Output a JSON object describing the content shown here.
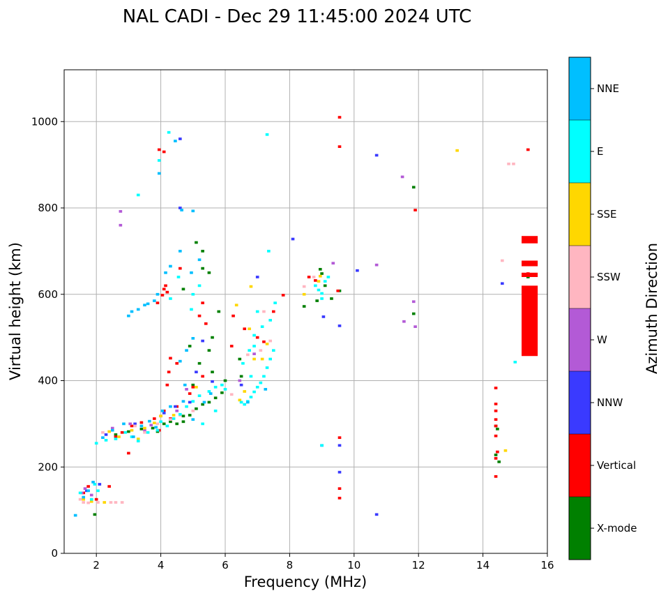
{
  "chart_data": {
    "type": "scatter",
    "title": "NAL CADI - Dec 29 11:45:00 2024 UTC",
    "xlabel": "Frequency (MHz)",
    "ylabel": "Virtual height (km)",
    "xlim": [
      1,
      16
    ],
    "ylim": [
      0,
      1120
    ],
    "xticks": [
      2,
      4,
      6,
      8,
      10,
      12,
      14,
      16
    ],
    "yticks": [
      0,
      200,
      400,
      600,
      800,
      1000
    ],
    "grid": true,
    "colorbar": {
      "title": "Azimuth Direction",
      "categories": [
        "X-mode",
        "Vertical",
        "NNW",
        "W",
        "SSW",
        "SSE",
        "E",
        "NNE"
      ],
      "colors": [
        "#008000",
        "#ff0000",
        "#3a3aff",
        "#b35ad6",
        "#ffb6c1",
        "#ffd700",
        "#00ffff",
        "#00bfff"
      ]
    },
    "series": [
      {
        "name": "X-mode",
        "color": "#008000",
        "points": [
          [
            1.95,
            90
          ],
          [
            2.6,
            275
          ],
          [
            3.0,
            282
          ],
          [
            3.4,
            288
          ],
          [
            3.75,
            290
          ],
          [
            3.9,
            282
          ],
          [
            4.1,
            300
          ],
          [
            4.3,
            305
          ],
          [
            4.5,
            300
          ],
          [
            4.7,
            305
          ],
          [
            4.7,
            318
          ],
          [
            4.9,
            320
          ],
          [
            5.1,
            335
          ],
          [
            5.3,
            345
          ],
          [
            5.5,
            350
          ],
          [
            5.7,
            360
          ],
          [
            5.9,
            372
          ],
          [
            5.0,
            390
          ],
          [
            5.6,
            420
          ],
          [
            6.0,
            400
          ],
          [
            5.2,
            440
          ],
          [
            5.5,
            470
          ],
          [
            4.9,
            480
          ],
          [
            5.6,
            500
          ],
          [
            5.8,
            560
          ],
          [
            5.5,
            650
          ],
          [
            5.3,
            660
          ],
          [
            4.7,
            612
          ],
          [
            5.1,
            720
          ],
          [
            5.3,
            700
          ],
          [
            6.45,
            450
          ],
          [
            6.5,
            410
          ],
          [
            8.45,
            572
          ],
          [
            8.85,
            585
          ],
          [
            9.3,
            590
          ],
          [
            9.0,
            648
          ],
          [
            8.95,
            658
          ],
          [
            9.1,
            620
          ],
          [
            9.55,
            608
          ],
          [
            11.85,
            555
          ],
          [
            11.85,
            848
          ],
          [
            14.4,
            295
          ],
          [
            14.45,
            288
          ],
          [
            14.4,
            228
          ],
          [
            14.5,
            212
          ],
          [
            15.4,
            640
          ]
        ]
      },
      {
        "name": "Vertical",
        "color": "#ff0000",
        "points": [
          [
            1.6,
            140
          ],
          [
            1.75,
            155
          ],
          [
            2.0,
            125
          ],
          [
            2.4,
            155
          ],
          [
            2.6,
            270
          ],
          [
            2.8,
            280
          ],
          [
            3.0,
            232
          ],
          [
            3.1,
            295
          ],
          [
            3.4,
            303
          ],
          [
            3.8,
            312
          ],
          [
            3.95,
            285
          ],
          [
            4.1,
            330
          ],
          [
            4.3,
            312
          ],
          [
            4.5,
            340
          ],
          [
            4.2,
            390
          ],
          [
            4.25,
            420
          ],
          [
            4.3,
            452
          ],
          [
            4.5,
            440
          ],
          [
            4.9,
            370
          ],
          [
            5.0,
            385
          ],
          [
            5.3,
            410
          ],
          [
            5.2,
            550
          ],
          [
            5.4,
            532
          ],
          [
            5.3,
            580
          ],
          [
            6.25,
            550
          ],
          [
            6.2,
            480
          ],
          [
            6.6,
            520
          ],
          [
            7.0,
            500
          ],
          [
            7.5,
            560
          ],
          [
            7.8,
            598
          ],
          [
            7.2,
            490
          ],
          [
            4.1,
            612
          ],
          [
            4.2,
            605
          ],
          [
            4.05,
            598
          ],
          [
            4.15,
            620
          ],
          [
            3.95,
            935
          ],
          [
            4.1,
            930
          ],
          [
            3.9,
            580
          ],
          [
            4.6,
            660
          ],
          [
            8.6,
            640
          ],
          [
            8.8,
            632
          ],
          [
            9.5,
            608
          ],
          [
            9.55,
            1010
          ],
          [
            9.55,
            942
          ],
          [
            9.55,
            268
          ],
          [
            9.55,
            150
          ],
          [
            9.55,
            128
          ],
          [
            11.9,
            795
          ],
          [
            14.4,
            383
          ],
          [
            14.4,
            346
          ],
          [
            14.4,
            330
          ],
          [
            14.4,
            310
          ],
          [
            14.4,
            295
          ],
          [
            14.4,
            272
          ],
          [
            14.45,
            235
          ],
          [
            14.4,
            220
          ],
          [
            14.4,
            178
          ],
          [
            15.4,
            935
          ],
          [
            15.4,
            728
          ],
          [
            15.4,
            670
          ],
          [
            15.4,
            648
          ]
        ]
      },
      {
        "name": "NNW",
        "color": "#3a3aff",
        "points": [
          [
            1.7,
            145
          ],
          [
            2.1,
            160
          ],
          [
            2.3,
            275
          ],
          [
            3.2,
            300
          ],
          [
            4.1,
            325
          ],
          [
            4.45,
            340
          ],
          [
            4.6,
            960
          ],
          [
            4.6,
            800
          ],
          [
            4.9,
            350
          ],
          [
            5.3,
            492
          ],
          [
            5.1,
            420
          ],
          [
            5.6,
            398
          ],
          [
            6.5,
            390
          ],
          [
            7.0,
            640
          ],
          [
            8.1,
            728
          ],
          [
            9.05,
            548
          ],
          [
            9.0,
            250
          ],
          [
            9.55,
            250
          ],
          [
            9.55,
            527
          ],
          [
            9.55,
            188
          ],
          [
            10.1,
            655
          ],
          [
            10.7,
            922
          ],
          [
            10.7,
            90
          ],
          [
            14.6,
            625
          ]
        ]
      },
      {
        "name": "W",
        "color": "#b35ad6",
        "points": [
          [
            1.55,
            140
          ],
          [
            1.65,
            150
          ],
          [
            1.85,
            135
          ],
          [
            2.5,
            290
          ],
          [
            3.05,
            300
          ],
          [
            3.5,
            285
          ],
          [
            3.7,
            297
          ],
          [
            4.0,
            318
          ],
          [
            4.5,
            330
          ],
          [
            4.8,
            380
          ],
          [
            2.75,
            792
          ],
          [
            2.75,
            760
          ],
          [
            6.45,
            400
          ],
          [
            6.9,
            462
          ],
          [
            9.35,
            672
          ],
          [
            10.7,
            668
          ],
          [
            11.5,
            872
          ],
          [
            11.85,
            583
          ],
          [
            11.9,
            525
          ],
          [
            11.55,
            537
          ]
        ]
      },
      {
        "name": "SSW",
        "color": "#ffb6c1",
        "points": [
          [
            1.5,
            125
          ],
          [
            1.6,
            118
          ],
          [
            1.75,
            117
          ],
          [
            2.05,
            118
          ],
          [
            2.45,
            118
          ],
          [
            2.6,
            118
          ],
          [
            2.8,
            118
          ],
          [
            2.2,
            280
          ],
          [
            3.2,
            295
          ],
          [
            3.5,
            280
          ],
          [
            3.9,
            300
          ],
          [
            4.3,
            310
          ],
          [
            4.6,
            320
          ],
          [
            5.0,
            330
          ],
          [
            6.2,
            368
          ],
          [
            6.7,
            460
          ],
          [
            7.1,
            470
          ],
          [
            7.4,
            492
          ],
          [
            7.2,
            560
          ],
          [
            8.45,
            618
          ],
          [
            8.75,
            640
          ],
          [
            14.6,
            678
          ],
          [
            14.8,
            902
          ],
          [
            14.95,
            902
          ]
        ]
      },
      {
        "name": "SSE",
        "color": "#ffd700",
        "points": [
          [
            1.6,
            125
          ],
          [
            1.85,
            120
          ],
          [
            2.25,
            118
          ],
          [
            2.4,
            282
          ],
          [
            2.7,
            270
          ],
          [
            3.1,
            285
          ],
          [
            3.3,
            265
          ],
          [
            3.5,
            290
          ],
          [
            3.8,
            302
          ],
          [
            4.0,
            318
          ],
          [
            4.4,
            320
          ],
          [
            5.1,
            385
          ],
          [
            6.35,
            575
          ],
          [
            6.45,
            355
          ],
          [
            6.6,
            375
          ],
          [
            6.75,
            520
          ],
          [
            6.9,
            450
          ],
          [
            7.15,
            450
          ],
          [
            7.3,
            485
          ],
          [
            6.8,
            618
          ],
          [
            8.45,
            600
          ],
          [
            8.9,
            630
          ],
          [
            8.95,
            642
          ],
          [
            14.7,
            238
          ],
          [
            13.2,
            933
          ]
        ]
      },
      {
        "name": "E",
        "color": "#00ffff",
        "points": [
          [
            2.0,
            255
          ],
          [
            2.3,
            262
          ],
          [
            2.6,
            265
          ],
          [
            2.9,
            280
          ],
          [
            3.1,
            270
          ],
          [
            3.3,
            260
          ],
          [
            3.6,
            280
          ],
          [
            3.9,
            285
          ],
          [
            4.0,
            305
          ],
          [
            4.2,
            295
          ],
          [
            4.4,
            312
          ],
          [
            4.6,
            322
          ],
          [
            4.8,
            340
          ],
          [
            5.0,
            352
          ],
          [
            5.2,
            365
          ],
          [
            5.5,
            375
          ],
          [
            5.7,
            385
          ],
          [
            5.9,
            390
          ],
          [
            6.0,
            380
          ],
          [
            6.5,
            350
          ],
          [
            6.6,
            345
          ],
          [
            6.7,
            352
          ],
          [
            6.8,
            362
          ],
          [
            6.9,
            374
          ],
          [
            7.0,
            385
          ],
          [
            7.1,
            395
          ],
          [
            7.2,
            410
          ],
          [
            7.3,
            430
          ],
          [
            7.4,
            450
          ],
          [
            7.5,
            470
          ],
          [
            6.55,
            440
          ],
          [
            6.75,
            470
          ],
          [
            6.8,
            410
          ],
          [
            6.9,
            480
          ],
          [
            6.9,
            505
          ],
          [
            7.15,
            525
          ],
          [
            7.4,
            540
          ],
          [
            7.0,
            560
          ],
          [
            7.55,
            580
          ],
          [
            5.3,
            300
          ],
          [
            5.7,
            330
          ],
          [
            4.95,
            565
          ],
          [
            5.0,
            600
          ],
          [
            5.2,
            620
          ],
          [
            4.3,
            590
          ],
          [
            4.55,
            640
          ],
          [
            3.95,
            910
          ],
          [
            3.3,
            830
          ],
          [
            4.25,
            975
          ],
          [
            7.3,
            970
          ],
          [
            7.35,
            700
          ],
          [
            8.8,
            620
          ],
          [
            8.9,
            610
          ],
          [
            9.0,
            590
          ],
          [
            9.0,
            602
          ],
          [
            9.1,
            630
          ],
          [
            9.2,
            640
          ],
          [
            9.0,
            250
          ],
          [
            15.0,
            443
          ],
          [
            1.85,
            125
          ],
          [
            2.05,
            145
          ],
          [
            1.95,
            160
          ],
          [
            1.5,
            140
          ]
        ]
      },
      {
        "name": "NNE",
        "color": "#00bfff",
        "points": [
          [
            1.6,
            130
          ],
          [
            1.75,
            145
          ],
          [
            1.9,
            165
          ],
          [
            2.2,
            268
          ],
          [
            2.5,
            285
          ],
          [
            2.85,
            300
          ],
          [
            3.15,
            270
          ],
          [
            3.4,
            295
          ],
          [
            3.65,
            306
          ],
          [
            3.85,
            292
          ],
          [
            4.05,
            330
          ],
          [
            4.3,
            340
          ],
          [
            4.7,
            352
          ],
          [
            5.0,
            310
          ],
          [
            5.35,
            350
          ],
          [
            4.75,
            390
          ],
          [
            5.55,
            370
          ],
          [
            3.0,
            550
          ],
          [
            3.1,
            560
          ],
          [
            3.3,
            565
          ],
          [
            3.5,
            575
          ],
          [
            3.6,
            578
          ],
          [
            3.8,
            585
          ],
          [
            3.9,
            600
          ],
          [
            4.15,
            650
          ],
          [
            4.3,
            665
          ],
          [
            4.6,
            700
          ],
          [
            4.95,
            650
          ],
          [
            5.2,
            680
          ],
          [
            4.6,
            445
          ],
          [
            4.8,
            470
          ],
          [
            5.0,
            498
          ],
          [
            3.95,
            880
          ],
          [
            4.45,
            955
          ],
          [
            4.65,
            795
          ],
          [
            5.0,
            793
          ],
          [
            7.25,
            380
          ],
          [
            6.7,
            350
          ],
          [
            1.35,
            88
          ]
        ]
      }
    ],
    "bars": [
      {
        "color": "#ff0000",
        "x0": 15.2,
        "x1": 15.7,
        "y0": 457,
        "y1": 620
      },
      {
        "color": "#ff0000",
        "x0": 15.2,
        "x1": 15.7,
        "y0": 718,
        "y1": 735
      },
      {
        "color": "#ff0000",
        "x0": 15.2,
        "x1": 15.7,
        "y0": 665,
        "y1": 678
      },
      {
        "color": "#ff0000",
        "x0": 15.2,
        "x1": 15.7,
        "y0": 640,
        "y1": 650
      }
    ]
  }
}
